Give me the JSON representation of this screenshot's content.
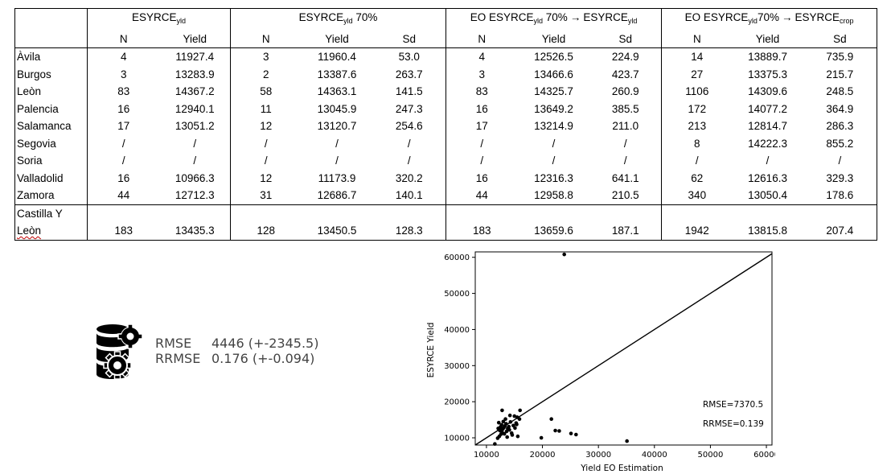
{
  "table": {
    "groups": [
      {
        "base": "ESYRCE",
        "sub": "yld",
        "suffix": "",
        "arrow": false,
        "target_base": "",
        "target_sub": ""
      },
      {
        "base": "ESYRCE",
        "sub": "yld",
        "suffix": " 70%",
        "arrow": false,
        "target_base": "",
        "target_sub": ""
      },
      {
        "base": "EO ESYRCE",
        "sub": "yld",
        "suffix": " 70%",
        "arrow": true,
        "target_base": "ESYRCE",
        "target_sub": "yld"
      },
      {
        "base": "EO ESYRCE",
        "sub": "yld",
        "suffix": "70%",
        "arrow": true,
        "target_base": "ESYRCE",
        "target_sub": "crop"
      }
    ],
    "subheaders": [
      "N",
      "Yield",
      "N",
      "Yield",
      "Sd",
      "N",
      "Yield",
      "Sd",
      "N",
      "Yield",
      "Sd"
    ],
    "rows": [
      {
        "region": "Àvila",
        "cells": [
          "4",
          "11927.4",
          "3",
          "11960.4",
          "53.0",
          "4",
          "12526.5",
          "224.9",
          "14",
          "13889.7",
          "735.9"
        ]
      },
      {
        "region": "Burgos",
        "cells": [
          "3",
          "13283.9",
          "2",
          "13387.6",
          "263.7",
          "3",
          "13466.6",
          "423.7",
          "27",
          "13375.3",
          "215.7"
        ]
      },
      {
        "region": "Leòn",
        "cells": [
          "83",
          "14367.2",
          "58",
          "14363.1",
          "141.5",
          "83",
          "14325.7",
          "260.9",
          "1106",
          "14309.6",
          "248.5"
        ]
      },
      {
        "region": "Palencia",
        "cells": [
          "16",
          "12940.1",
          "11",
          "13045.9",
          "247.3",
          "16",
          "13649.2",
          "385.5",
          "172",
          "14077.2",
          "364.9"
        ]
      },
      {
        "region": "Salamanca",
        "cells": [
          "17",
          "13051.2",
          "12",
          "13120.7",
          "254.6",
          "17",
          "13214.9",
          "211.0",
          "213",
          "12814.7",
          "286.3"
        ]
      },
      {
        "region": "Segovia",
        "cells": [
          "/",
          "/",
          "/",
          "/",
          "/",
          "/",
          "/",
          "/",
          "8",
          "14222.3",
          "855.2"
        ]
      },
      {
        "region": "Soria",
        "cells": [
          "/",
          "/",
          "/",
          "/",
          "/",
          "/",
          "/",
          "/",
          "/",
          "/",
          "/"
        ]
      },
      {
        "region": "Valladolid",
        "cells": [
          "16",
          "10966.3",
          "12",
          "11173.9",
          "320.2",
          "16",
          "12316.3",
          "641.1",
          "62",
          "12616.3",
          "329.3"
        ]
      },
      {
        "region": "Zamora",
        "cells": [
          "44",
          "12712.3",
          "31",
          "12686.7",
          "140.1",
          "44",
          "12958.8",
          "210.5",
          "340",
          "13050.4",
          "178.6"
        ]
      }
    ],
    "total": {
      "region_line1": "Castilla Y",
      "region_line2": "Leòn",
      "cells": [
        "183",
        "13435.3",
        "128",
        "13450.5",
        "128.3",
        "183",
        "13659.6",
        "187.1",
        "1942",
        "13815.8",
        "207.4"
      ]
    }
  },
  "metrics": {
    "icon": "database-gear-icon",
    "rows": [
      {
        "label": "RMSE",
        "value": "4446 (+-2345.5)"
      },
      {
        "label": "RRMSE",
        "value": "0.176 (+-0.094)"
      }
    ]
  },
  "chart_data": {
    "type": "scatter",
    "title": "",
    "xlabel": "Yield EO Estimation",
    "ylabel": "ESYRCE Yield",
    "xlim": [
      8000,
      61000
    ],
    "ylim": [
      8000,
      61500
    ],
    "xticks": [
      10000,
      20000,
      30000,
      40000,
      50000,
      60000
    ],
    "yticks": [
      10000,
      20000,
      30000,
      40000,
      50000,
      60000
    ],
    "grid": false,
    "reference_line": {
      "from": [
        8000,
        8000
      ],
      "to": [
        61000,
        61000
      ]
    },
    "annotations": [
      "RMSE=7370.5",
      "RRMSE=0.139"
    ],
    "marker_color": "#000000",
    "points": [
      [
        23900,
        60800
      ],
      [
        11500,
        8300
      ],
      [
        12000,
        9900
      ],
      [
        12300,
        10400
      ],
      [
        12600,
        11000
      ],
      [
        12800,
        11500
      ],
      [
        12400,
        12000
      ],
      [
        12900,
        12400
      ],
      [
        13100,
        12800
      ],
      [
        12500,
        13000
      ],
      [
        13300,
        13300
      ],
      [
        12700,
        13600
      ],
      [
        13500,
        13900
      ],
      [
        12200,
        14200
      ],
      [
        13800,
        12600
      ],
      [
        14000,
        13100
      ],
      [
        13000,
        14500
      ],
      [
        12800,
        17600
      ],
      [
        13400,
        15200
      ],
      [
        14300,
        14400
      ],
      [
        14100,
        12200
      ],
      [
        13600,
        11800
      ],
      [
        14500,
        11300
      ],
      [
        15000,
        16000
      ],
      [
        14200,
        16200
      ],
      [
        15500,
        15700
      ],
      [
        15900,
        15200
      ],
      [
        15400,
        13700
      ],
      [
        15100,
        12700
      ],
      [
        14600,
        10800
      ],
      [
        15600,
        10400
      ],
      [
        16000,
        17600
      ],
      [
        15300,
        14100
      ],
      [
        13200,
        11100
      ],
      [
        12100,
        12600
      ],
      [
        13700,
        10200
      ],
      [
        14800,
        13400
      ],
      [
        19800,
        10000
      ],
      [
        21600,
        15200
      ],
      [
        22300,
        12000
      ],
      [
        23000,
        11900
      ],
      [
        25100,
        11200
      ],
      [
        26000,
        10900
      ],
      [
        35100,
        9100
      ]
    ]
  }
}
